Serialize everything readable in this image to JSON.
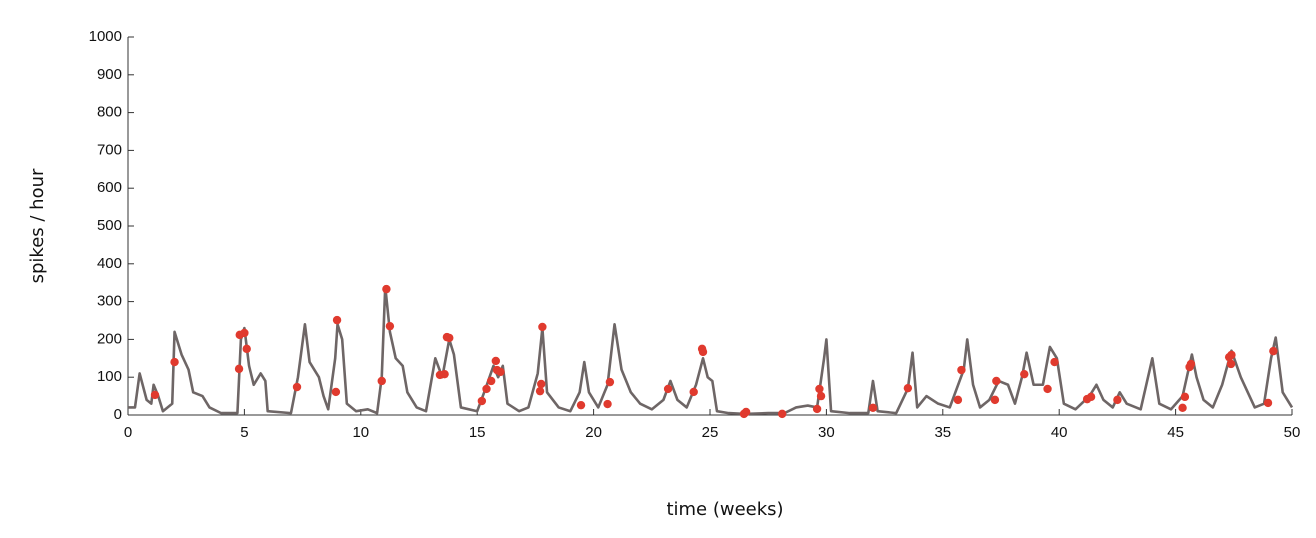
{
  "chart_data": {
    "type": "line",
    "xlabel": "time (weeks)",
    "ylabel": "spikes / hour",
    "xlim": [
      0,
      50
    ],
    "xticks": [
      0,
      5,
      10,
      15,
      20,
      25,
      30,
      35,
      40,
      45,
      50
    ],
    "ylim": [
      0,
      1000
    ],
    "yticks": [
      0,
      100,
      200,
      300,
      400,
      500,
      600,
      700,
      800,
      900,
      1000
    ],
    "series": [
      {
        "type": "line",
        "color": "#6e6666",
        "x": [
          0,
          0.3,
          0.5,
          0.8,
          1.0,
          1.1,
          1.3,
          1.5,
          1.9,
          2.0,
          2.3,
          2.6,
          2.8,
          3.2,
          3.5,
          4.0,
          4.7,
          4.85,
          5.0,
          5.2,
          5.4,
          5.7,
          5.9,
          6.0,
          7.0,
          7.3,
          7.6,
          7.8,
          8.2,
          8.4,
          8.6,
          8.9,
          9.0,
          9.2,
          9.4,
          9.8,
          10.3,
          10.7,
          10.9,
          11.05,
          11.25,
          11.5,
          11.8,
          12.0,
          12.4,
          12.8,
          13.2,
          13.5,
          13.8,
          14.0,
          14.3,
          15.0,
          15.3,
          15.7,
          15.9,
          16.1,
          16.3,
          16.8,
          17.2,
          17.6,
          17.8,
          18.0,
          18.5,
          19.0,
          19.4,
          19.6,
          19.8,
          20.2,
          20.6,
          20.9,
          21.2,
          21.6,
          22.0,
          22.5,
          23.0,
          23.3,
          23.6,
          24.0,
          24.4,
          24.7,
          24.9,
          25.1,
          25.3,
          25.8,
          26.5,
          27.5,
          28.2,
          28.7,
          29.2,
          29.6,
          29.9,
          30.0,
          30.2,
          31.0,
          31.8,
          32.0,
          32.2,
          33.0,
          33.5,
          33.7,
          33.9,
          34.3,
          34.8,
          35.3,
          35.9,
          36.05,
          36.3,
          36.6,
          37.0,
          37.4,
          37.8,
          38.1,
          38.4,
          38.6,
          38.9,
          39.3,
          39.6,
          39.9,
          40.2,
          40.7,
          41.3,
          41.6,
          41.9,
          42.3,
          42.6,
          42.9,
          43.5,
          44.0,
          44.3,
          44.8,
          45.3,
          45.7,
          45.9,
          46.2,
          46.6,
          47.0,
          47.4,
          47.8,
          48.1,
          48.4,
          48.8,
          49.1,
          49.3,
          49.6,
          50.0
        ],
        "values": [
          20,
          20,
          110,
          40,
          30,
          80,
          50,
          10,
          30,
          220,
          160,
          120,
          60,
          50,
          20,
          5,
          5,
          200,
          230,
          130,
          80,
          110,
          90,
          10,
          5,
          100,
          240,
          140,
          100,
          50,
          15,
          150,
          240,
          200,
          30,
          10,
          15,
          5,
          100,
          340,
          220,
          150,
          130,
          60,
          20,
          10,
          150,
          100,
          200,
          160,
          20,
          10,
          60,
          130,
          100,
          130,
          30,
          10,
          20,
          110,
          230,
          60,
          20,
          10,
          60,
          140,
          60,
          20,
          80,
          240,
          120,
          60,
          30,
          15,
          40,
          90,
          40,
          20,
          80,
          150,
          100,
          90,
          10,
          5,
          3,
          5,
          5,
          20,
          25,
          20,
          150,
          200,
          10,
          5,
          5,
          90,
          10,
          5,
          70,
          165,
          20,
          50,
          30,
          20,
          120,
          200,
          80,
          20,
          40,
          90,
          80,
          30,
          100,
          165,
          80,
          80,
          180,
          150,
          30,
          15,
          50,
          80,
          40,
          20,
          60,
          30,
          15,
          150,
          30,
          15,
          50,
          160,
          100,
          40,
          20,
          80,
          170,
          100,
          60,
          20,
          30,
          150,
          205,
          60,
          20
        ]
      },
      {
        "type": "scatter",
        "color": "#e03a2e",
        "x": [
          1.16,
          2.0,
          4.77,
          4.8,
          5.0,
          5.1,
          7.26,
          8.93,
          8.98,
          10.9,
          11.1,
          11.25,
          13.4,
          13.6,
          13.7,
          13.8,
          15.2,
          15.4,
          15.6,
          15.8,
          15.85,
          16.0,
          17.7,
          17.75,
          17.8,
          19.46,
          20.6,
          20.7,
          23.2,
          24.3,
          24.66,
          24.7,
          26.46,
          26.55,
          28.1,
          29.6,
          29.7,
          29.77,
          32.0,
          33.5,
          35.65,
          35.8,
          37.24,
          37.3,
          38.5,
          39.5,
          39.8,
          41.2,
          41.37,
          42.5,
          45.3,
          45.4,
          45.6,
          45.66,
          47.3,
          47.38,
          47.4,
          48.97,
          49.2
        ],
        "values": [
          53,
          140,
          122,
          212,
          217,
          175,
          74,
          61,
          251,
          90,
          333,
          235,
          106,
          108,
          206,
          204,
          37,
          69,
          90,
          143,
          119,
          114,
          63,
          82,
          233,
          26,
          29,
          87,
          69,
          61,
          175,
          167,
          3,
          8,
          3,
          16,
          69,
          50,
          19,
          71,
          40,
          119,
          40,
          90,
          108,
          69,
          140,
          42,
          48,
          40,
          19,
          48,
          127,
          135,
          153,
          135,
          159,
          32,
          169
        ]
      }
    ]
  }
}
